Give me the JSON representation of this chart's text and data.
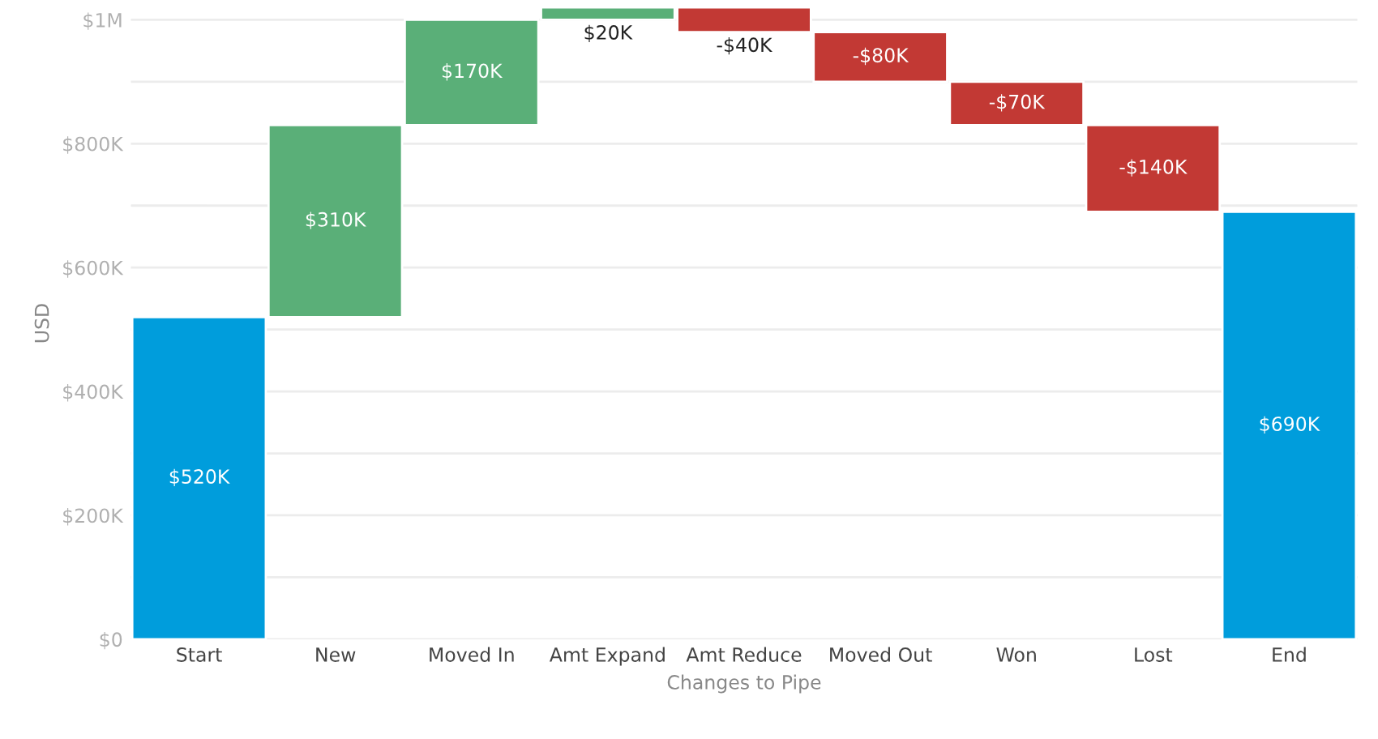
{
  "chart_data": {
    "type": "bar",
    "xlabel": "Changes to Pipe",
    "ylabel": "USD",
    "categories": [
      "Start",
      "New",
      "Moved In",
      "Amt Expand",
      "Amt Reduce",
      "Moved Out",
      "Won",
      "Lost",
      "End"
    ],
    "values": [
      520000,
      310000,
      170000,
      20000,
      -40000,
      -80000,
      -70000,
      -140000,
      690000
    ],
    "base": [
      0,
      520000,
      830000,
      1000000,
      1020000,
      980000,
      900000,
      830000,
      0
    ],
    "colors": [
      "#009ddc",
      "#5aaf78",
      "#5aaf78",
      "#5aaf78",
      "#c23934",
      "#c23934",
      "#c23934",
      "#c23934",
      "#009ddc"
    ],
    "value_labels": [
      "$520K",
      "$310K",
      "$170K",
      "$20K",
      "-$40K",
      "-$80K",
      "-$70K",
      "-$140K",
      "$690K"
    ],
    "ylim": [
      0,
      1020000
    ],
    "yticks": [
      {
        "value": 0,
        "label": "$0"
      },
      {
        "value": 100000,
        "label": null
      },
      {
        "value": 200000,
        "label": "$200K"
      },
      {
        "value": 300000,
        "label": null
      },
      {
        "value": 400000,
        "label": "$400K"
      },
      {
        "value": 500000,
        "label": null
      },
      {
        "value": 600000,
        "label": "$600K"
      },
      {
        "value": 700000,
        "label": null
      },
      {
        "value": 800000,
        "label": "$800K"
      },
      {
        "value": 900000,
        "label": null
      },
      {
        "value": 1000000,
        "label": "$1M"
      }
    ],
    "grid": "y",
    "legend": false
  }
}
